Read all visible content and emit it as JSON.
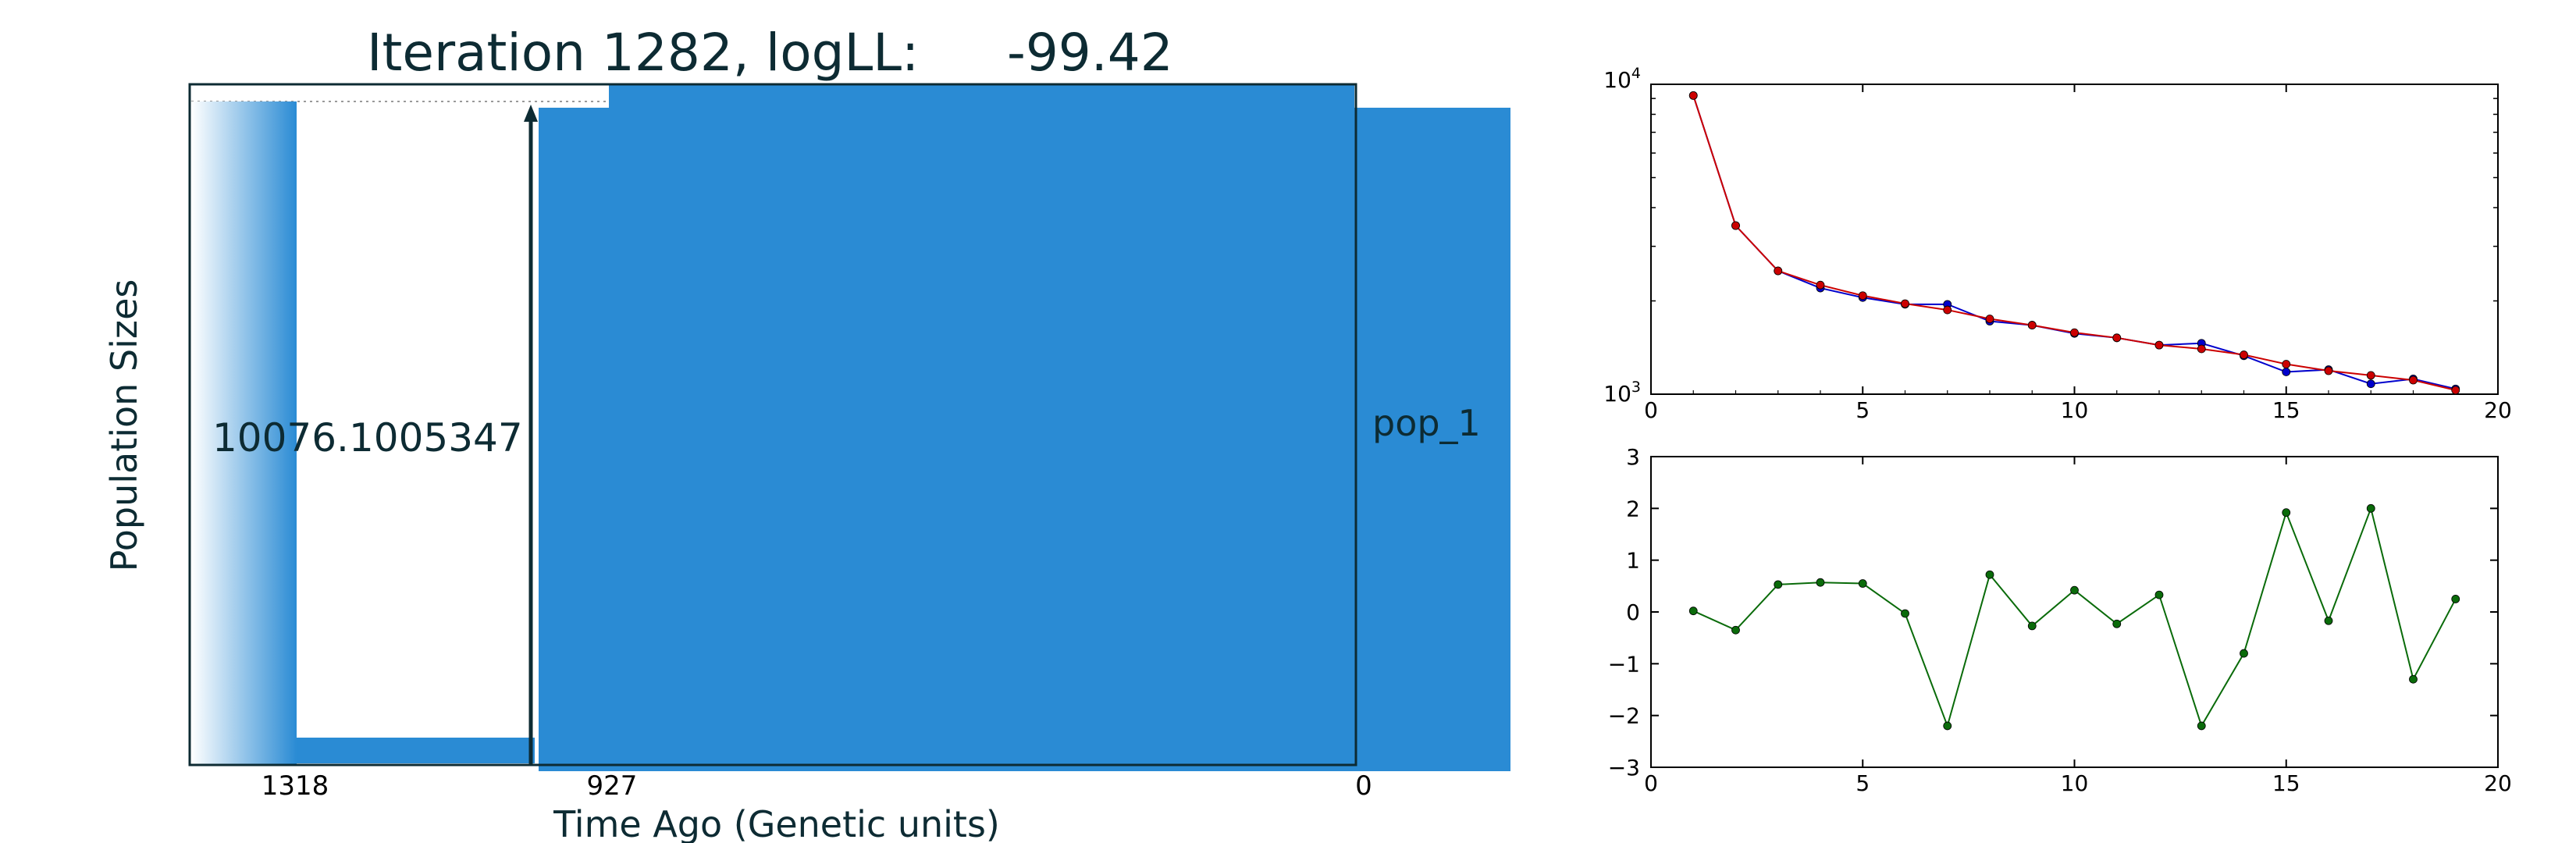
{
  "chart_data": [
    {
      "type": "area",
      "title_prefix": "Iteration 1282, logLL:",
      "title_value": "-99.42",
      "xlabel": "Time Ago (Genetic units)",
      "ylabel": "Population Sizes",
      "xticks": [
        "1318",
        "927",
        "0"
      ],
      "population_label": "pop_1",
      "population_size_label": "10076.1005347",
      "fill_color": "#2a8bd4",
      "arrow_color": "#0d2b33"
    },
    {
      "type": "line",
      "ylog": true,
      "xlim": [
        0,
        20
      ],
      "ylim": [
        1000,
        10000
      ],
      "xticks": [
        "0",
        "5",
        "10",
        "15",
        "20"
      ],
      "yticks": [
        "10^3",
        "10^4"
      ],
      "x": [
        1,
        2,
        3,
        4,
        5,
        6,
        7,
        8,
        9,
        10,
        11,
        12,
        13,
        14,
        15,
        16,
        17,
        18,
        19
      ],
      "series": [
        {
          "color": "#0000cc",
          "values": [
            9200,
            3500,
            2500,
            2200,
            2050,
            1950,
            1950,
            1720,
            1670,
            1570,
            1520,
            1440,
            1460,
            1330,
            1180,
            1200,
            1080,
            1120,
            1040
          ]
        },
        {
          "color": "#cc0000",
          "values": [
            9200,
            3500,
            2500,
            2250,
            2080,
            1960,
            1870,
            1750,
            1670,
            1580,
            1520,
            1440,
            1400,
            1340,
            1250,
            1190,
            1150,
            1110,
            1030
          ]
        }
      ]
    },
    {
      "type": "line",
      "xlim": [
        0,
        20
      ],
      "ylim": [
        -3,
        3
      ],
      "xticks": [
        "0",
        "5",
        "10",
        "15",
        "20"
      ],
      "yticks": [
        "3",
        "2",
        "1",
        "0",
        "−1",
        "−2",
        "−3"
      ],
      "x": [
        1,
        2,
        3,
        4,
        5,
        6,
        7,
        8,
        9,
        10,
        11,
        12,
        13,
        14,
        15,
        16,
        17,
        18,
        19
      ],
      "series": [
        {
          "color": "#0a6b0a",
          "values": [
            0.02,
            -0.35,
            0.53,
            0.57,
            0.55,
            -0.03,
            -2.2,
            0.72,
            -0.27,
            0.42,
            -0.23,
            0.33,
            -2.2,
            -0.8,
            1.92,
            -0.17,
            2.0,
            -1.3,
            0.25
          ]
        }
      ]
    }
  ]
}
